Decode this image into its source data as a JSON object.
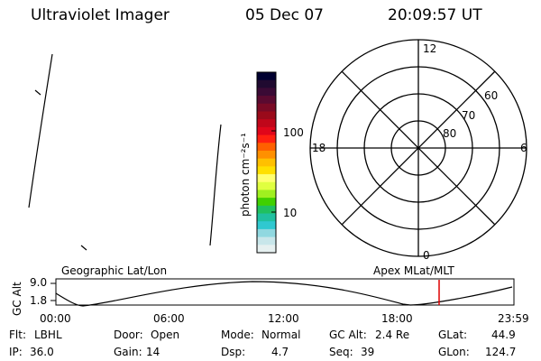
{
  "header": {
    "instrument": "Ultraviolet Imager",
    "date": "05 Dec 07",
    "time": "20:09:57 UT"
  },
  "colorbar": {
    "label": "photon cm⁻²s⁻¹",
    "ticks": [
      "100",
      "10"
    ],
    "colors": [
      "#000030",
      "#200a30",
      "#3a0a35",
      "#5a0a30",
      "#7a0a25",
      "#9a0a1a",
      "#c0061a",
      "#e0061a",
      "#ff2010",
      "#ff6000",
      "#ff9000",
      "#ffc000",
      "#ffe000",
      "#ffff70",
      "#e0ff40",
      "#a0f020",
      "#40d000",
      "#20c060",
      "#20c0a0",
      "#30c8d0",
      "#90d8e0",
      "#c8e6ea",
      "#e6f0f0"
    ]
  },
  "polar_plot": {
    "mlt_labels": {
      "top": "12",
      "right": "6",
      "bottom": "0",
      "left": "18"
    },
    "lat_labels": [
      "60",
      "70",
      "80"
    ]
  },
  "timeline": {
    "left_label": "Geographic Lat/Lon",
    "right_label": "Apex MLat/MLT",
    "axis_label": "GC Alt",
    "y_ticks": [
      "9.0",
      "1.8"
    ],
    "x_ticks": [
      "00:00",
      "06:00",
      "12:00",
      "18:00",
      "23:59"
    ],
    "marker_color": "#dd0000",
    "marker_time": "20:09:57"
  },
  "status": {
    "flt_label": "Flt:",
    "flt_value": "LBHL",
    "ip_label": "IP:",
    "ip_value": "36.0",
    "door_label": "Door:",
    "door_value": "Open",
    "gain_label": "Gain:",
    "gain_value": "14",
    "mode_label": "Mode:",
    "mode_value": "Normal",
    "dsp_label": "Dsp:",
    "dsp_value": "4.7",
    "gcalt_label": "GC Alt:",
    "gcalt_value": "2.4 Re",
    "seq_label": "Seq:",
    "seq_value": "39",
    "glat_label": "GLat:",
    "glat_value": "44.9",
    "glon_label": "GLon:",
    "glon_value": "124.7"
  }
}
